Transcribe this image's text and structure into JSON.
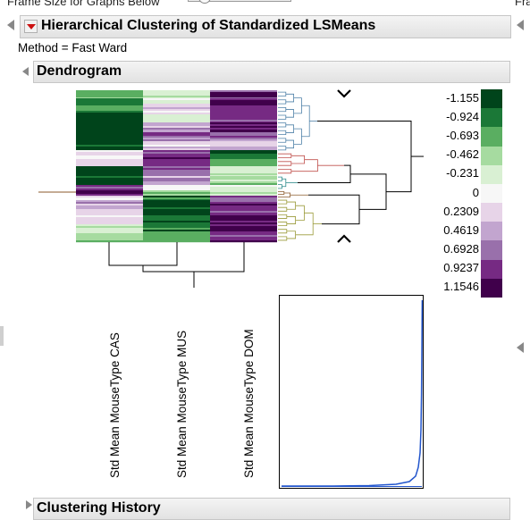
{
  "top": {
    "frame_size_label": "Frame Size for Graphs Below",
    "right_cut_text": "Fra"
  },
  "report": {
    "title": "Hierarchical Clustering of Standardized LSMeans",
    "method": "Method = Fast Ward",
    "dendrogram_title": "Dendrogram",
    "clustering_history_title": "Clustering History"
  },
  "legend": {
    "labels": [
      "-1.155",
      "-0.924",
      "-0.693",
      "-0.462",
      "-0.231",
      "0",
      "0.2309",
      "0.4619",
      "0.6928",
      "0.9237",
      "1.1546"
    ],
    "colors": [
      "#00441b",
      "#1b7837",
      "#5aae61",
      "#a6dba0",
      "#d9f0d3",
      "#f7f7f7",
      "#e7d4e8",
      "#c2a5cf",
      "#9970ab",
      "#762a83",
      "#40004b"
    ]
  },
  "columns": {
    "labels": [
      "Std Mean MouseType CAS",
      "Std Mean MouseType MUS",
      "Std Mean MouseType DOM"
    ]
  },
  "colors": {
    "cluster_blue": "#4f81a8",
    "cluster_red": "#c0504d",
    "cluster_teal": "#2e8b8b",
    "cluster_brown": "#8b5a2b",
    "cluster_olive": "#9b9b3a",
    "scree_blue": "#2255cc"
  },
  "icons": {
    "disclosure": "disclosure-triangle-icon",
    "red_menu": "red-triangle-menu-icon",
    "up_caret": "caret-up-icon",
    "down_caret": "caret-down-icon"
  }
}
